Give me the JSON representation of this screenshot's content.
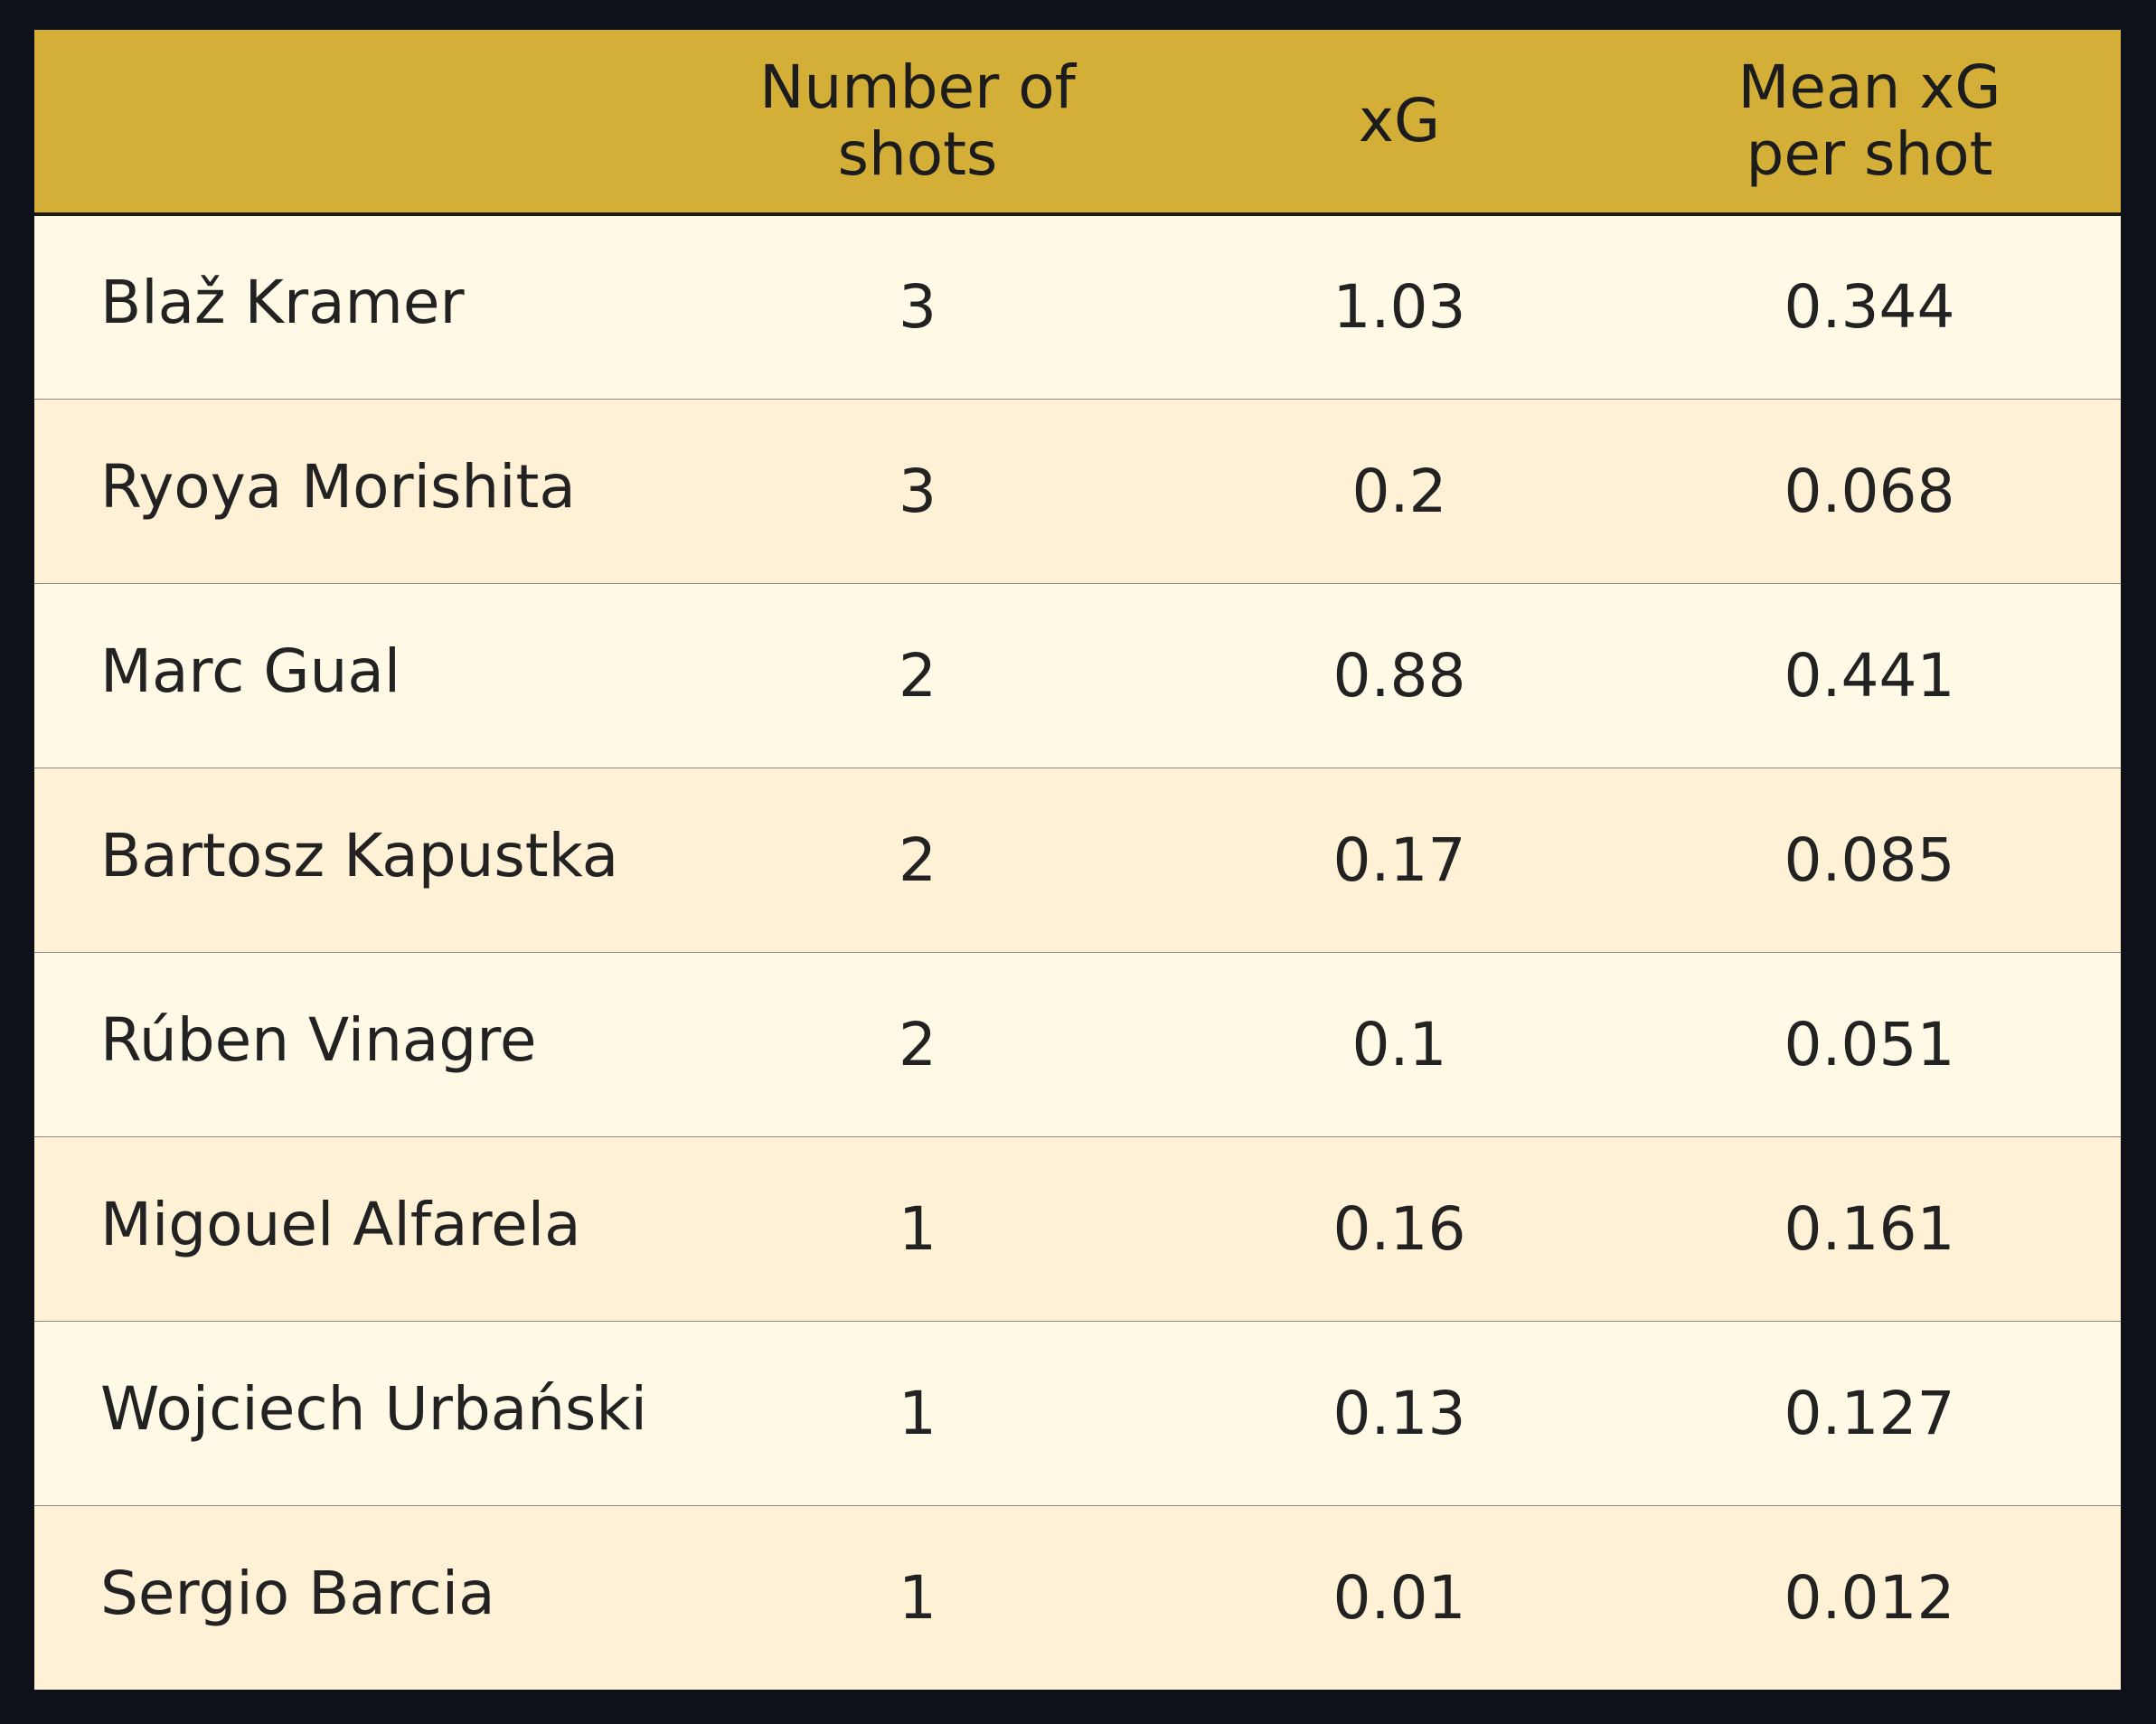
{
  "chart_data": {
    "type": "table",
    "columns": [
      "",
      "Number of\nshots",
      "xG",
      "Mean xG\nper shot"
    ],
    "rows": [
      {
        "player": "Blaž Kramer",
        "shots": "3",
        "xg": "1.03",
        "mean_xg": "0.344"
      },
      {
        "player": "Ryoya Morishita",
        "shots": "3",
        "xg": "0.2",
        "mean_xg": "0.068"
      },
      {
        "player": "Marc Gual",
        "shots": "2",
        "xg": "0.88",
        "mean_xg": "0.441"
      },
      {
        "player": "Bartosz Kapustka",
        "shots": "2",
        "xg": "0.17",
        "mean_xg": "0.085"
      },
      {
        "player": "Rúben Vinagre",
        "shots": "2",
        "xg": "0.1",
        "mean_xg": "0.051"
      },
      {
        "player": "Migouel Alfarela",
        "shots": "1",
        "xg": "0.16",
        "mean_xg": "0.161"
      },
      {
        "player": "Wojciech Urbański",
        "shots": "1",
        "xg": "0.13",
        "mean_xg": "0.127"
      },
      {
        "player": "Sergio Barcia",
        "shots": "1",
        "xg": "0.01",
        "mean_xg": "0.012"
      }
    ]
  },
  "colors": {
    "header_background": "#d4af37",
    "row_light": "#fff9e6",
    "row_alt": "#fff1d6",
    "page_background": "#0e111a",
    "text": "#222222"
  }
}
